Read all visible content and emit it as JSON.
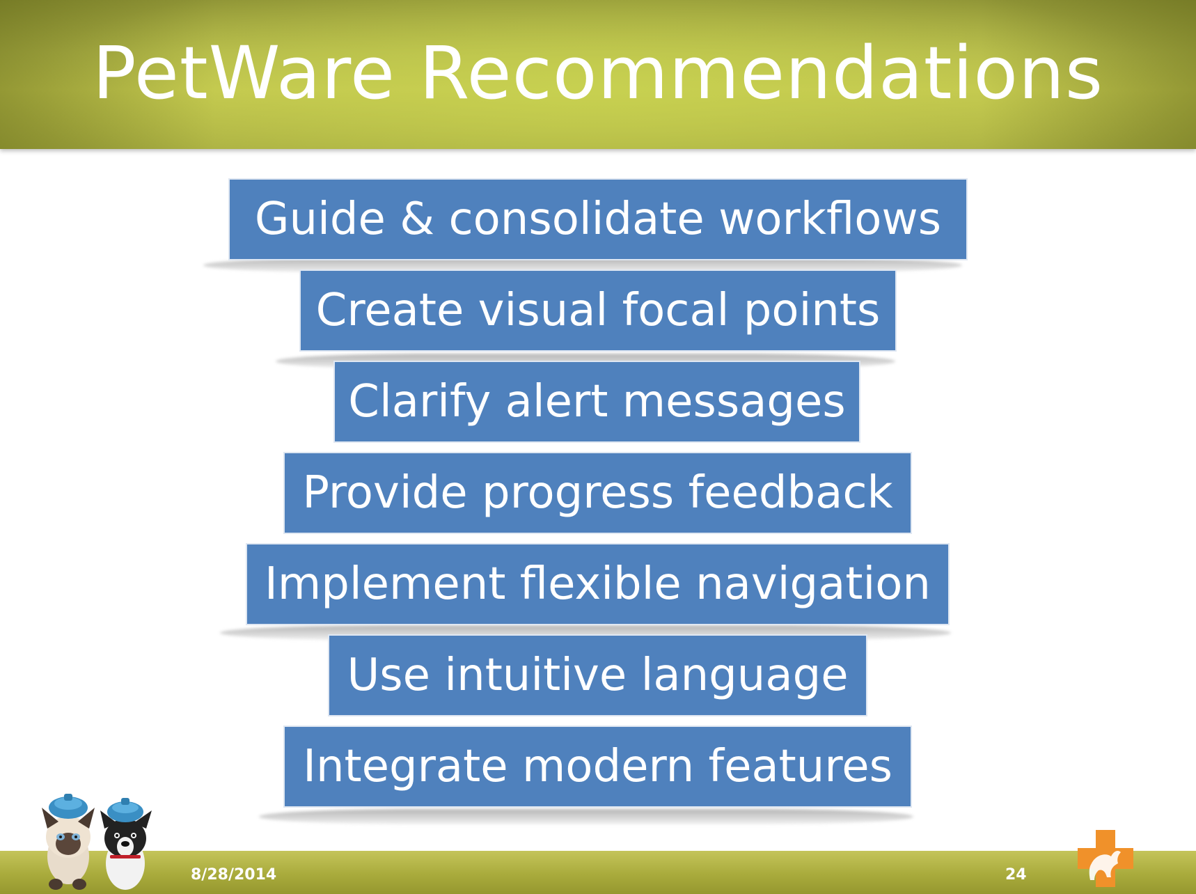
{
  "slide": {
    "title": "PetWare Recommendations",
    "recommendations": [
      "Guide & consolidate workflows",
      "Create visual focal points",
      "Clarify alert messages",
      "Provide progress feedback",
      "Implement flexible navigation",
      "Use intuitive language",
      "Integrate modern features"
    ],
    "footer": {
      "date": "8/28/2014",
      "page_number": "24"
    }
  },
  "colors": {
    "title_band": "#b3b84a",
    "bar_fill": "#4f81bd",
    "footer_band": "#a9ab3c",
    "logo": "#f0912a"
  },
  "icons": {
    "pets": "sick-cat-and-dog-with-ice-packs",
    "logo": "pet-cross-logo"
  }
}
